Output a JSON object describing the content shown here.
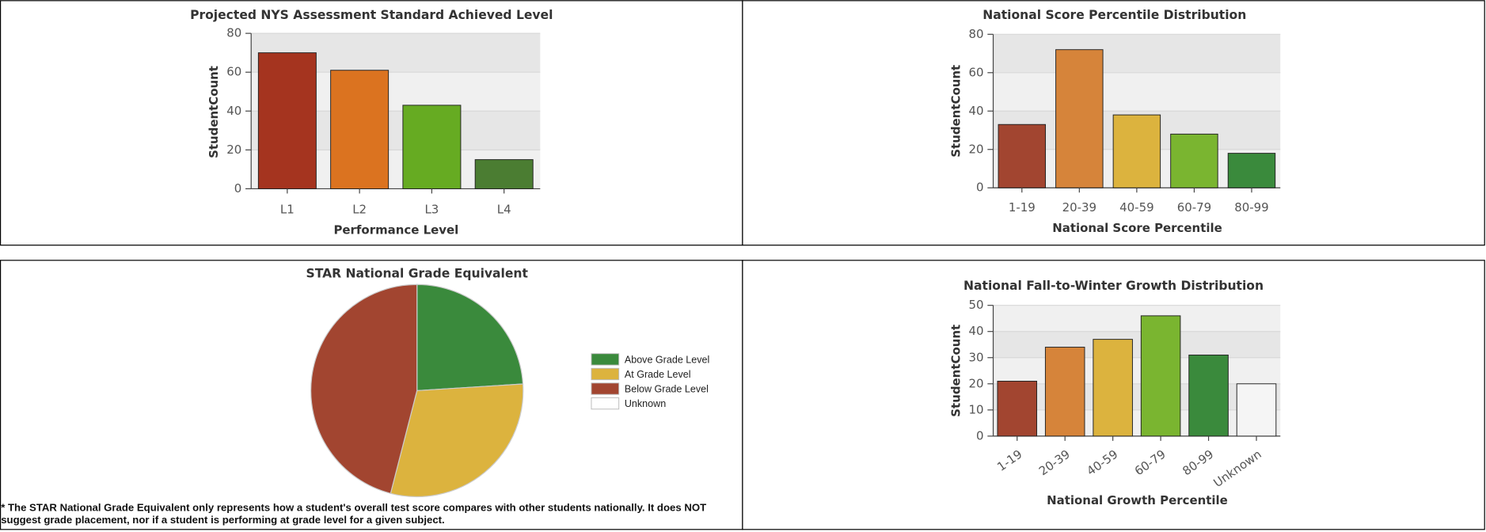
{
  "chart_data": [
    {
      "type": "bar",
      "title": "Projected NYS Assessment Standard Achieved Level",
      "x_label": "Performance Level",
      "y_label": "StudentCount",
      "categories": [
        "L1",
        "L2",
        "L3",
        "L4"
      ],
      "values": [
        70,
        61,
        43,
        15
      ],
      "colors": [
        "#a5341f",
        "#db7320",
        "#66ab22",
        "#4b7d32"
      ],
      "ylim": [
        0,
        80
      ],
      "yticks": [
        0,
        20,
        40,
        60,
        80
      ],
      "grid": true
    },
    {
      "type": "bar",
      "title": "National Score Percentile Distribution",
      "x_label": "National Score Percentile",
      "y_label": "StudentCount",
      "categories": [
        "1-19",
        "20-39",
        "40-59",
        "60-79",
        "80-99"
      ],
      "values": [
        33,
        72,
        38,
        28,
        18
      ],
      "colors": [
        "#a24530",
        "#d6843a",
        "#dcb33e",
        "#7ab530",
        "#3a8a3c"
      ],
      "ylim": [
        0,
        80
      ],
      "yticks": [
        0,
        20,
        40,
        60,
        80
      ],
      "grid": true
    },
    {
      "type": "pie",
      "title": "STAR National Grade Equivalent",
      "categories": [
        "Above Grade Level",
        "At Grade Level",
        "Below Grade Level",
        "Unknown"
      ],
      "values": [
        24,
        30,
        46,
        0
      ],
      "colors": [
        "#3a8a3c",
        "#dcb33e",
        "#a24530",
        "#ffffff"
      ],
      "footnote": "* The STAR National Grade Equivalent only represents how a student's overall test score compares with other students nationally.  It does NOT suggest grade placement, nor if a student is performing at grade level for a given subject."
    },
    {
      "type": "bar",
      "title": "National Fall-to-Winter Growth Distribution",
      "x_label": "National Growth Percentile",
      "y_label": "StudentCount",
      "categories": [
        "1-19",
        "20-39",
        "40-59",
        "60-79",
        "80-99",
        "Unknown"
      ],
      "values": [
        21,
        34,
        37,
        46,
        31,
        20
      ],
      "colors": [
        "#a24530",
        "#d6843a",
        "#dcb33e",
        "#7ab530",
        "#3a8a3c",
        "#f5f5f5"
      ],
      "ylim": [
        0,
        50
      ],
      "yticks": [
        0,
        10,
        20,
        30,
        40,
        50
      ],
      "grid": true,
      "rotate_x_labels": true
    }
  ]
}
